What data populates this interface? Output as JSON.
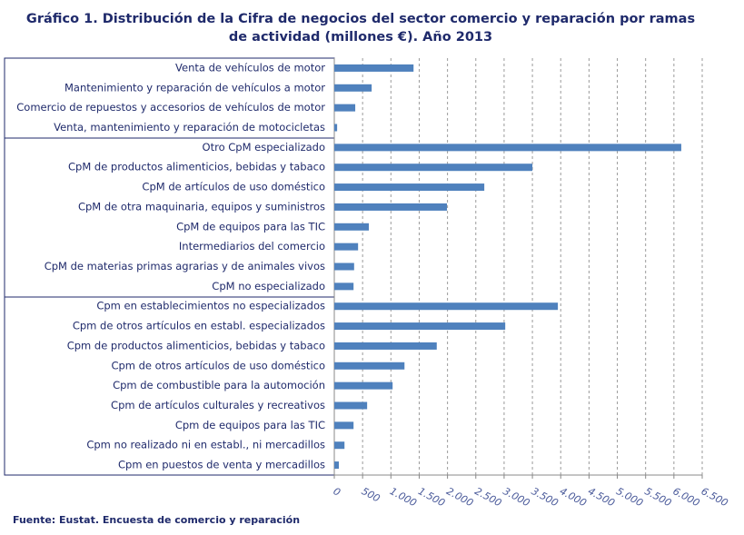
{
  "chart_data": {
    "type": "bar",
    "orientation": "horizontal",
    "title": "Gráfico 1. Distribución  de la Cifra de negocios del sector comercio y reparación  por ramas",
    "subtitle": "de actividad  (millones  €). Año 2013",
    "source": "Fuente: Eustat. Encuesta de comercio y reparación",
    "categories": [
      "Venta de vehículos de motor",
      "Mantenimiento y reparación de vehículos a motor",
      "Comercio de repuestos y accesorios de vehículos de motor",
      "Venta, mantenimiento y reparación de motocicletas",
      "Otro CpM especializado",
      "CpM de productos alimenticios, bebidas y tabaco",
      "CpM de artículos de uso doméstico",
      "CpM de otra maquinaria, equipos y suministros",
      "CpM de equipos para las TIC",
      "Intermediarios del comercio",
      "CpM de materias primas agrarias y de animales vivos",
      "CpM no especializado",
      "Cpm en establecimientos no especializados",
      "Cpm de otros artículos en establ. especializados",
      "Cpm de productos alimenticios, bebidas y tabaco",
      "Cpm de otros artículos de uso doméstico",
      "Cpm de combustible para la automoción",
      "Cpm de artículos culturales y recreativos",
      "Cpm de equipos para las TIC",
      "Cpm no realizado ni en establ., ni mercadillos",
      "Cpm en puestos de venta y mercadillos"
    ],
    "values": [
      1400,
      660,
      370,
      50,
      6130,
      3500,
      2650,
      1990,
      610,
      420,
      350,
      340,
      3950,
      3020,
      1810,
      1240,
      1030,
      580,
      340,
      180,
      80
    ],
    "color": "#4f81bd",
    "xlim": [
      0,
      6500
    ],
    "xticks": [
      0,
      500,
      {
        "value": 1000,
        "label": "1.000"
      },
      {
        "value": 1500,
        "label": "1.500"
      },
      {
        "value": 2000,
        "label": "2.000"
      },
      {
        "value": 2500,
        "label": "2.500"
      },
      {
        "value": 3000,
        "label": "3.000"
      },
      {
        "value": 3500,
        "label": "3.500"
      },
      {
        "value": 4000,
        "label": "4.000"
      },
      {
        "value": 4500,
        "label": "4.500"
      },
      {
        "value": 5000,
        "label": "5.000"
      },
      {
        "value": 5500,
        "label": "5.500"
      },
      {
        "value": 6000,
        "label": "6.000"
      },
      {
        "value": 6500,
        "label": "6.500"
      }
    ],
    "grid": true
  }
}
